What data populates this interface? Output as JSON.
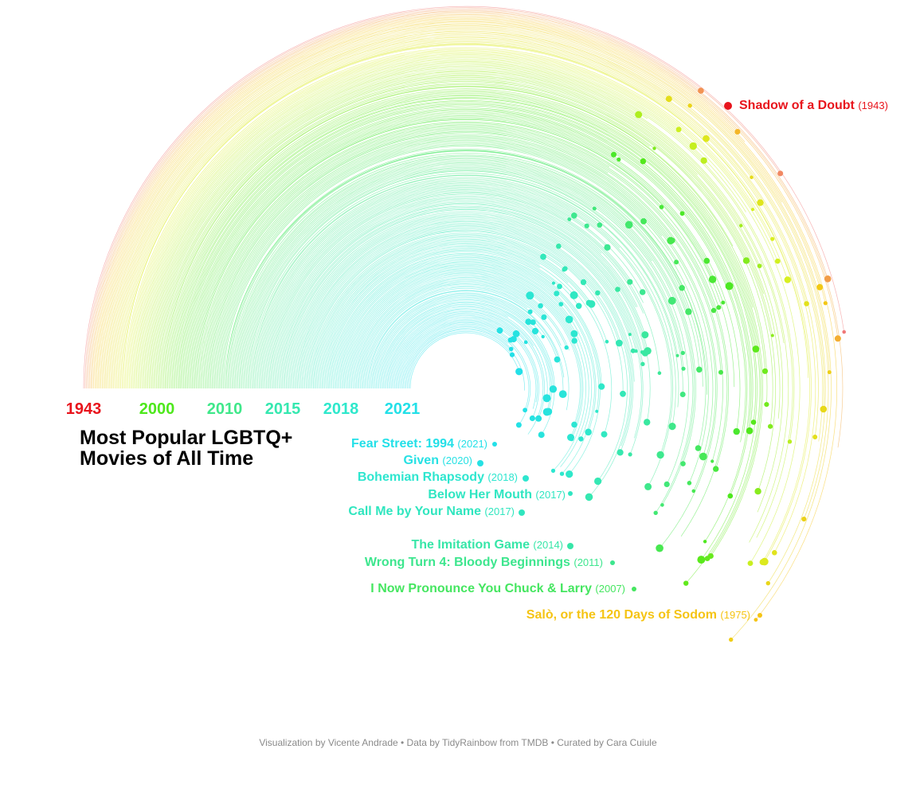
{
  "chart_data": {
    "type": "radial-arc",
    "title_lines": [
      "Most Popular LGBTQ+",
      "Movies of All Time"
    ],
    "caption": "Visualization by Vicente Andrade • Data by TidyRainbow from TMDB • Curated by Cara Cuiule",
    "axis_ticks": [
      {
        "label": "1943",
        "color": "#e8141c"
      },
      {
        "label": "2000",
        "color": "#4ee81c"
      },
      {
        "label": "2010",
        "color": "#3fe88a"
      },
      {
        "label": "2015",
        "color": "#35e8b0"
      },
      {
        "label": "2018",
        "color": "#2ee8cc"
      },
      {
        "label": "2021",
        "color": "#23e0e8"
      }
    ],
    "highlighted_movies": [
      {
        "title": "Shadow of a Doubt",
        "year": 1943,
        "year_label": "(1943)",
        "color": "#e8141c"
      },
      {
        "title": "Fear Street: 1994",
        "year": 2021,
        "year_label": "(2021)",
        "color": "#23e0e8"
      },
      {
        "title": "Given",
        "year": 2020,
        "year_label": "(2020)",
        "color": "#26e1e4"
      },
      {
        "title": "Bohemian Rhapsody",
        "year": 2018,
        "year_label": "(2018)",
        "color": "#2ee6cf"
      },
      {
        "title": "Below Her Mouth",
        "year": 2017,
        "year_label": "(2017)",
        "color": "#30e6c2"
      },
      {
        "title": "Call Me by Your Name",
        "year": 2017,
        "year_label": "(2017)",
        "color": "#30e6bf"
      },
      {
        "title": "The Imitation Game",
        "year": 2014,
        "year_label": "(2014)",
        "color": "#37e6a8"
      },
      {
        "title": "Wrong Turn 4: Bloody Beginnings",
        "year": 2011,
        "year_label": "(2011)",
        "color": "#3de68e"
      },
      {
        "title": "I Now Pronounce You Chuck & Larry",
        "year": 2007,
        "year_label": "(2007)",
        "color": "#45e660"
      },
      {
        "title": "Salò, or the 120 Days of Sodom",
        "year": 1975,
        "year_label": "(1975)",
        "color": "#f5c414"
      }
    ],
    "colors": {
      "oldest": "#e8141c",
      "early": "#f5c414",
      "middle": "#4ee81c",
      "newest": "#23e0e8",
      "caption": "#8a8a8a"
    }
  }
}
